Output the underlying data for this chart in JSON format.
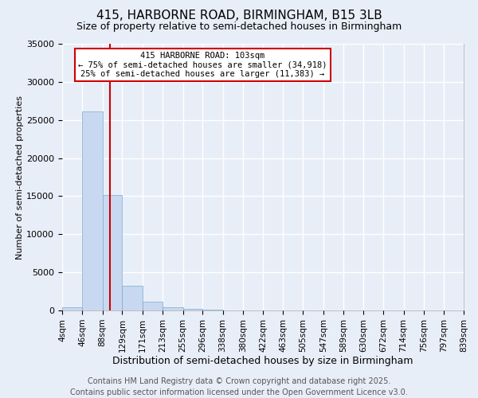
{
  "title1": "415, HARBORNE ROAD, BIRMINGHAM, B15 3LB",
  "title2": "Size of property relative to semi-detached houses in Birmingham",
  "xlabel": "Distribution of semi-detached houses by size in Birmingham",
  "ylabel": "Number of semi-detached properties",
  "footer1": "Contains HM Land Registry data © Crown copyright and database right 2025.",
  "footer2": "Contains public sector information licensed under the Open Government Licence v3.0.",
  "annotation_line1": "415 HARBORNE ROAD: 103sqm",
  "annotation_line2": "← 75% of semi-detached houses are smaller (34,918)",
  "annotation_line3": "25% of semi-detached houses are larger (11,383) →",
  "property_size": 103,
  "bin_edges": [
    4,
    46,
    88,
    129,
    171,
    213,
    255,
    296,
    338,
    380,
    422,
    463,
    505,
    547,
    589,
    630,
    672,
    714,
    756,
    797,
    839
  ],
  "bin_labels": [
    "4sqm",
    "46sqm",
    "88sqm",
    "129sqm",
    "171sqm",
    "213sqm",
    "255sqm",
    "296sqm",
    "338sqm",
    "380sqm",
    "422sqm",
    "463sqm",
    "505sqm",
    "547sqm",
    "589sqm",
    "630sqm",
    "672sqm",
    "714sqm",
    "756sqm",
    "797sqm",
    "839sqm"
  ],
  "counts": [
    400,
    26100,
    15100,
    3200,
    1200,
    430,
    200,
    80,
    10,
    5,
    3,
    2,
    1,
    1,
    1,
    0,
    0,
    0,
    0,
    0
  ],
  "bar_color": "#c8d8f0",
  "bar_edgecolor": "#7aaad0",
  "vline_color": "#cc0000",
  "vline_x": 103,
  "ylim": [
    0,
    35000
  ],
  "yticks": [
    0,
    5000,
    10000,
    15000,
    20000,
    25000,
    30000,
    35000
  ],
  "bg_color": "#e8eef8",
  "grid_color": "#ffffff",
  "annotation_box_color": "white",
  "annotation_box_edgecolor": "#cc0000",
  "title1_fontsize": 11,
  "title2_fontsize": 9,
  "ylabel_fontsize": 8,
  "xlabel_fontsize": 9,
  "footer_fontsize": 7,
  "tick_fontsize": 8,
  "xtick_fontsize": 7.5
}
